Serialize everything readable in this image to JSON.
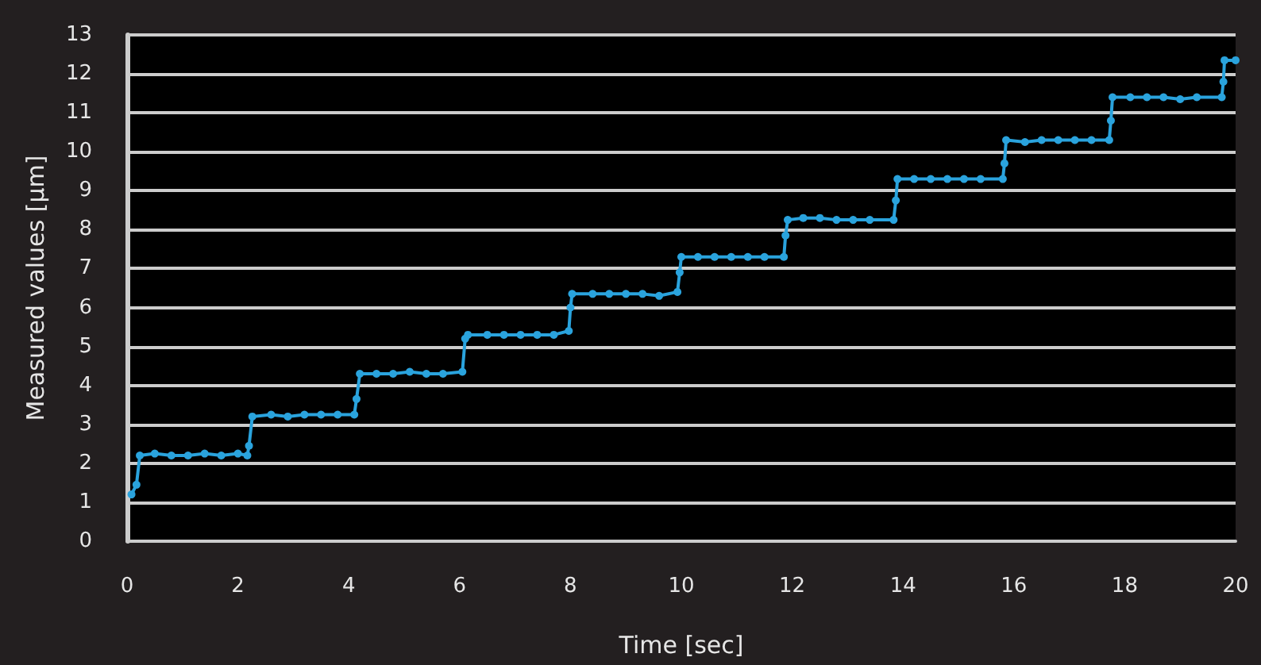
{
  "chart_data": {
    "type": "line",
    "xlabel": "Time [sec]",
    "ylabel": "Measured values [μm]",
    "xlim": [
      0,
      20
    ],
    "xticks": [
      0,
      2,
      4,
      6,
      8,
      10,
      12,
      14,
      16,
      18,
      20
    ],
    "ylim": [
      0,
      13
    ],
    "yticks": [
      0,
      1,
      2,
      3,
      4,
      5,
      6,
      7,
      8,
      9,
      10,
      11,
      12,
      13
    ],
    "grid": "y",
    "marker": "circle",
    "line_style": "solid",
    "series": [
      {
        "color": "#2aa3dd",
        "x": [
          0.08,
          0.17,
          0.23,
          0.5,
          0.8,
          1.1,
          1.4,
          1.7,
          2.0,
          2.17,
          2.2,
          2.26,
          2.6,
          2.9,
          3.2,
          3.5,
          3.8,
          4.1,
          4.14,
          4.2,
          4.5,
          4.8,
          5.1,
          5.4,
          5.7,
          6.05,
          6.1,
          6.15,
          6.5,
          6.8,
          7.1,
          7.4,
          7.7,
          7.97,
          8.0,
          8.03,
          8.4,
          8.7,
          9.0,
          9.3,
          9.6,
          9.93,
          9.97,
          10.0,
          10.3,
          10.6,
          10.9,
          11.2,
          11.5,
          11.85,
          11.88,
          11.92,
          12.2,
          12.5,
          12.8,
          13.1,
          13.4,
          13.83,
          13.87,
          13.9,
          14.2,
          14.5,
          14.8,
          15.1,
          15.4,
          15.8,
          15.83,
          15.86,
          16.2,
          16.5,
          16.8,
          17.1,
          17.4,
          17.72,
          17.75,
          17.78,
          18.1,
          18.4,
          18.7,
          19.0,
          19.3,
          19.75,
          19.78,
          19.8,
          20
        ],
        "values": [
          1.2,
          1.45,
          2.2,
          2.25,
          2.2,
          2.2,
          2.25,
          2.2,
          2.25,
          2.2,
          2.45,
          3.2,
          3.25,
          3.2,
          3.25,
          3.25,
          3.25,
          3.25,
          3.65,
          4.3,
          4.3,
          4.3,
          4.35,
          4.3,
          4.3,
          4.35,
          5.2,
          5.3,
          5.3,
          5.3,
          5.3,
          5.3,
          5.3,
          5.4,
          6.0,
          6.35,
          6.35,
          6.35,
          6.35,
          6.35,
          6.3,
          6.4,
          6.9,
          7.3,
          7.3,
          7.3,
          7.3,
          7.3,
          7.3,
          7.3,
          7.85,
          8.25,
          8.3,
          8.3,
          8.25,
          8.25,
          8.25,
          8.25,
          8.75,
          9.3,
          9.3,
          9.3,
          9.3,
          9.3,
          9.3,
          9.3,
          9.7,
          10.3,
          10.25,
          10.3,
          10.3,
          10.3,
          10.3,
          10.3,
          10.8,
          11.4,
          11.4,
          11.4,
          11.4,
          11.35,
          11.4,
          11.4,
          11.8,
          12.35,
          12.35
        ]
      }
    ]
  }
}
